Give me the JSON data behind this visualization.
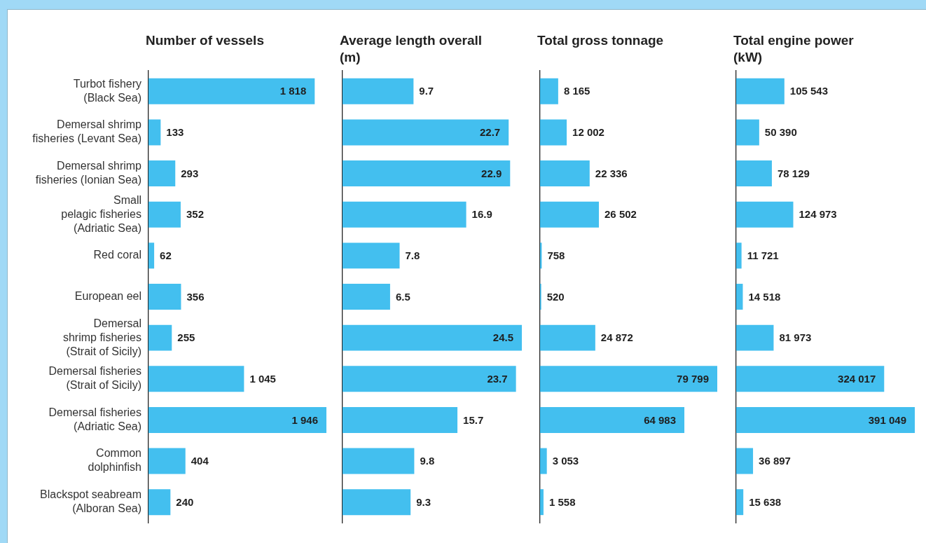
{
  "chart_data": [
    {
      "type": "bar",
      "orientation": "horizontal",
      "title": "Number of vessels",
      "categories": [
        "Turbot fishery\n(Black Sea)",
        "Demersal shrimp\nfisheries (Levant Sea)",
        "Demersal shrimp\nfisheries (Ionian Sea)",
        "Small\npelagic fisheries\n(Adriatic Sea)",
        "Red coral",
        "European eel",
        "Demersal\nshrimp fisheries\n(Strait of Sicily)",
        "Demersal fisheries\n(Strait of Sicily)",
        "Demersal fisheries\n(Adriatic Sea)",
        "Common\ndolphinfish",
        "Blackspot seabream\n(Alboran Sea)"
      ],
      "values": [
        1818,
        133,
        293,
        352,
        62,
        356,
        255,
        1045,
        1946,
        404,
        240
      ],
      "value_labels": [
        "1 818",
        "133",
        "293",
        "352",
        "62",
        "356",
        "255",
        "1 045",
        "1 946",
        "404",
        "240"
      ],
      "color": "#43bfef",
      "tick_labels": "y"
    },
    {
      "type": "bar",
      "orientation": "horizontal",
      "title": "Average length overall\n(m)",
      "categories": [
        null,
        null,
        null,
        null,
        null,
        null,
        null,
        null,
        null,
        null,
        null
      ],
      "values": [
        9.7,
        22.7,
        22.9,
        16.9,
        7.8,
        6.5,
        24.5,
        23.7,
        15.7,
        9.8,
        9.3
      ],
      "value_labels": [
        "9.7",
        "22.7",
        "22.9",
        "16.9",
        "7.8",
        "6.5",
        "24.5",
        "23.7",
        "15.7",
        "9.8",
        "9.3"
      ],
      "color": "#43bfef",
      "tick_labels": false
    },
    {
      "type": "bar",
      "orientation": "horizontal",
      "title": "Total gross tonnage",
      "categories": [
        null,
        null,
        null,
        null,
        null,
        null,
        null,
        null,
        null,
        null,
        null
      ],
      "values": [
        8165,
        12002,
        22336,
        26502,
        758,
        520,
        24872,
        79799,
        64983,
        3053,
        1558
      ],
      "value_labels": [
        "8 165",
        "12 002",
        "22 336",
        "26 502",
        "758",
        "520",
        "24 872",
        "79 799",
        "64 983",
        "3 053",
        "1 558"
      ],
      "color": "#43bfef",
      "tick_labels": false
    },
    {
      "type": "bar",
      "orientation": "horizontal",
      "title": "Total engine power\n(kW)",
      "categories": [
        null,
        null,
        null,
        null,
        null,
        null,
        null,
        null,
        null,
        null,
        null
      ],
      "values": [
        105543,
        50390,
        78129,
        124973,
        11721,
        14518,
        81973,
        324017,
        391049,
        36897,
        15638
      ],
      "value_labels": [
        "105 543",
        "50 390",
        "78 129",
        "124 973",
        "11 721",
        "14 518",
        "81 973",
        "324 017",
        "391 049",
        "36 897",
        "15 638"
      ],
      "color": "#43bfef",
      "tick_labels": false
    }
  ]
}
